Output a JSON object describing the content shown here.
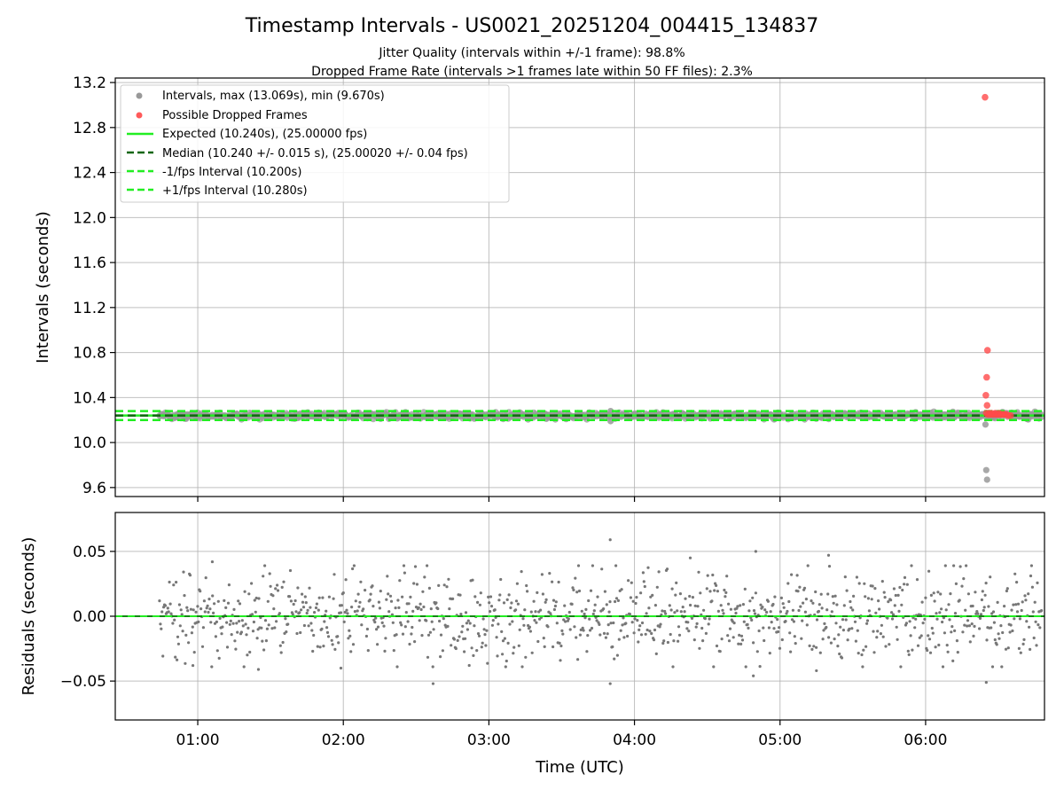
{
  "figure": {
    "title": "Timestamp Intervals - US0021_20251204_004415_134837",
    "subtitle_line1": "Jitter Quality (intervals within +/-1 frame): 98.8%",
    "subtitle_line2": "Dropped Frame Rate (intervals >1 frames late within 50 FF files): 2.3%"
  },
  "chart_data": [
    {
      "type": "scatter",
      "panel": "intervals",
      "ylabel": "Intervals (seconds)",
      "xlim": [
        "00:26:00",
        "06:49:00"
      ],
      "ylim": [
        9.52,
        13.24
      ],
      "yticks": [
        "9.6",
        "10.0",
        "10.4",
        "10.8",
        "11.2",
        "11.6",
        "12.0",
        "12.4",
        "12.8",
        "13.2"
      ],
      "xticks": [
        "01:00",
        "02:00",
        "03:00",
        "04:00",
        "05:00",
        "06:00"
      ],
      "grid": true,
      "legend_position": "upper-left",
      "legend": [
        {
          "label": "Intervals, max (13.069s), min (9.670s)",
          "kind": "marker",
          "color": "#999999"
        },
        {
          "label": "Possible Dropped Frames",
          "kind": "marker",
          "color": "#ff5a5a"
        },
        {
          "label": "Expected (10.240s), (25.00000 fps)",
          "kind": "solid",
          "color": "#22ee22"
        },
        {
          "label": "Median (10.240 +/- 0.015 s), (25.00020 +/- 0.04 fps)",
          "kind": "dashed",
          "color": "#116611"
        },
        {
          "label": "-1/fps Interval (10.200s)",
          "kind": "dashed",
          "color": "#22ee22"
        },
        {
          "label": "+1/fps Interval (10.280s)",
          "kind": "dashed",
          "color": "#22ee22"
        }
      ],
      "lines": {
        "expected": 10.24,
        "median": 10.24,
        "lower": 10.2,
        "upper": 10.28
      },
      "intervals_time_range": [
        "00:44:15",
        "06:48:00"
      ],
      "intervals_sample_step_s": 20.48,
      "intervals_center": 10.24,
      "intervals_spread": 0.015,
      "interval_outliers": [
        {
          "x": "06:25:20",
          "y": 9.67
        },
        {
          "x": "06:25:00",
          "y": 9.755
        },
        {
          "x": "06:24:40",
          "y": 10.16
        },
        {
          "x": "03:50:10",
          "y": 10.19
        },
        {
          "x": "03:50:10",
          "y": 10.28
        }
      ],
      "dropped_frames": [
        {
          "x": "06:24:30",
          "y": 13.069
        },
        {
          "x": "06:25:30",
          "y": 10.82
        },
        {
          "x": "06:25:10",
          "y": 10.58
        },
        {
          "x": "06:24:50",
          "y": 10.42
        },
        {
          "x": "06:25:20",
          "y": 10.33
        },
        {
          "x": "06:25:00",
          "y": 10.26
        },
        {
          "x": "06:25:40",
          "y": 10.25
        },
        {
          "x": "06:26:10",
          "y": 10.26
        },
        {
          "x": "06:26:40",
          "y": 10.25
        },
        {
          "x": "06:27:10",
          "y": 10.26
        },
        {
          "x": "06:27:40",
          "y": 10.25
        },
        {
          "x": "06:28:10",
          "y": 10.25
        },
        {
          "x": "06:28:40",
          "y": 10.26
        },
        {
          "x": "06:29:10",
          "y": 10.25
        },
        {
          "x": "06:29:40",
          "y": 10.25
        },
        {
          "x": "06:30:10",
          "y": 10.26
        },
        {
          "x": "06:30:40",
          "y": 10.25
        },
        {
          "x": "06:31:10",
          "y": 10.25
        },
        {
          "x": "06:31:40",
          "y": 10.25
        },
        {
          "x": "06:32:10",
          "y": 10.25
        },
        {
          "x": "06:32:40",
          "y": 10.25
        },
        {
          "x": "06:33:10",
          "y": 10.25
        },
        {
          "x": "06:34:00",
          "y": 10.24
        },
        {
          "x": "06:35:00",
          "y": 10.24
        }
      ]
    },
    {
      "type": "scatter",
      "panel": "residuals",
      "xlabel": "Time (UTC)",
      "ylabel": "Residuals (seconds)",
      "xlim": [
        "00:26:00",
        "06:49:00"
      ],
      "ylim": [
        -0.08,
        0.08
      ],
      "yticks": [
        "0.05",
        "0.00",
        "−0.05"
      ],
      "xticks": [
        "01:00",
        "02:00",
        "03:00",
        "04:00",
        "05:00",
        "06:00"
      ],
      "grid": true,
      "zero_line_color": "#118811",
      "zero_dash_color": "#22ee22",
      "points_color": "#777777",
      "residuals_time_range": [
        "00:44:15",
        "06:48:00"
      ],
      "residuals_sample_step_s": 20.48,
      "residuals_spread": 0.017,
      "residual_outliers": [
        {
          "x": "03:50:00",
          "y": 0.059
        },
        {
          "x": "04:50:00",
          "y": 0.05
        },
        {
          "x": "05:20:00",
          "y": 0.047
        },
        {
          "x": "04:23:00",
          "y": 0.045
        },
        {
          "x": "01:06:00",
          "y": 0.042
        },
        {
          "x": "02:37:00",
          "y": -0.052
        },
        {
          "x": "03:50:00",
          "y": -0.052
        },
        {
          "x": "06:25:00",
          "y": -0.051
        },
        {
          "x": "04:49:00",
          "y": -0.046
        },
        {
          "x": "05:15:00",
          "y": -0.042
        },
        {
          "x": "01:25:00",
          "y": -0.041
        },
        {
          "x": "01:59:00",
          "y": -0.04
        },
        {
          "x": "00:58:00",
          "y": -0.038
        }
      ]
    }
  ]
}
